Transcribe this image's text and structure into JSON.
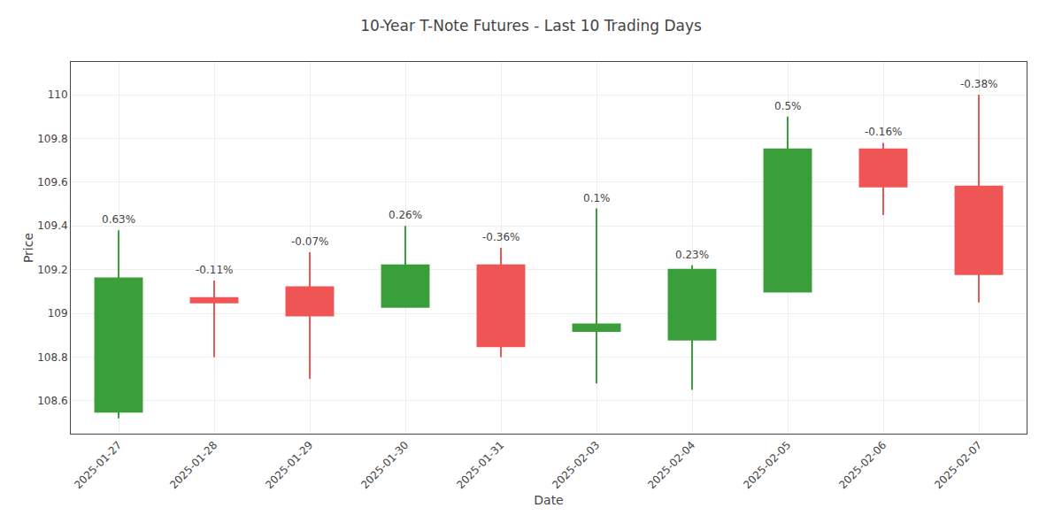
{
  "chart_data": {
    "type": "candlestick",
    "title": "10-Year T-Note Futures - Last 10 Trading Days",
    "xlabel": "Date",
    "ylabel": "Price",
    "categories": [
      "2025-01-27",
      "2025-01-28",
      "2025-01-29",
      "2025-01-30",
      "2025-01-31",
      "2025-02-03",
      "2025-02-04",
      "2025-02-05",
      "2025-02-06",
      "2025-02-07"
    ],
    "open": [
      108.55,
      109.07,
      109.12,
      109.03,
      109.22,
      108.92,
      108.88,
      109.1,
      109.75,
      109.58
    ],
    "high": [
      109.38,
      109.15,
      109.28,
      109.4,
      109.3,
      109.48,
      109.22,
      109.9,
      109.78,
      110.0
    ],
    "low": [
      108.52,
      108.8,
      108.7,
      109.03,
      108.8,
      108.68,
      108.65,
      109.1,
      109.45,
      109.05
    ],
    "close": [
      109.16,
      109.05,
      108.99,
      109.22,
      108.85,
      108.95,
      109.2,
      109.75,
      109.58,
      109.18
    ],
    "annotations": [
      "0.63%",
      "-0.11%",
      "-0.07%",
      "0.26%",
      "-0.36%",
      "0.1%",
      "0.23%",
      "0.5%",
      "-0.16%",
      "-0.38%"
    ],
    "colors": [
      "#3a9e3a",
      "#f05555",
      "#f05555",
      "#3a9e3a",
      "#f05555",
      "#3a9e3a",
      "#3a9e3a",
      "#3a9e3a",
      "#f05555",
      "#f05555"
    ],
    "ylim": [
      108.45,
      110.15
    ],
    "yticks": [
      108.6,
      108.8,
      109,
      109.2,
      109.4,
      109.6,
      109.8,
      110
    ],
    "grid": true
  }
}
